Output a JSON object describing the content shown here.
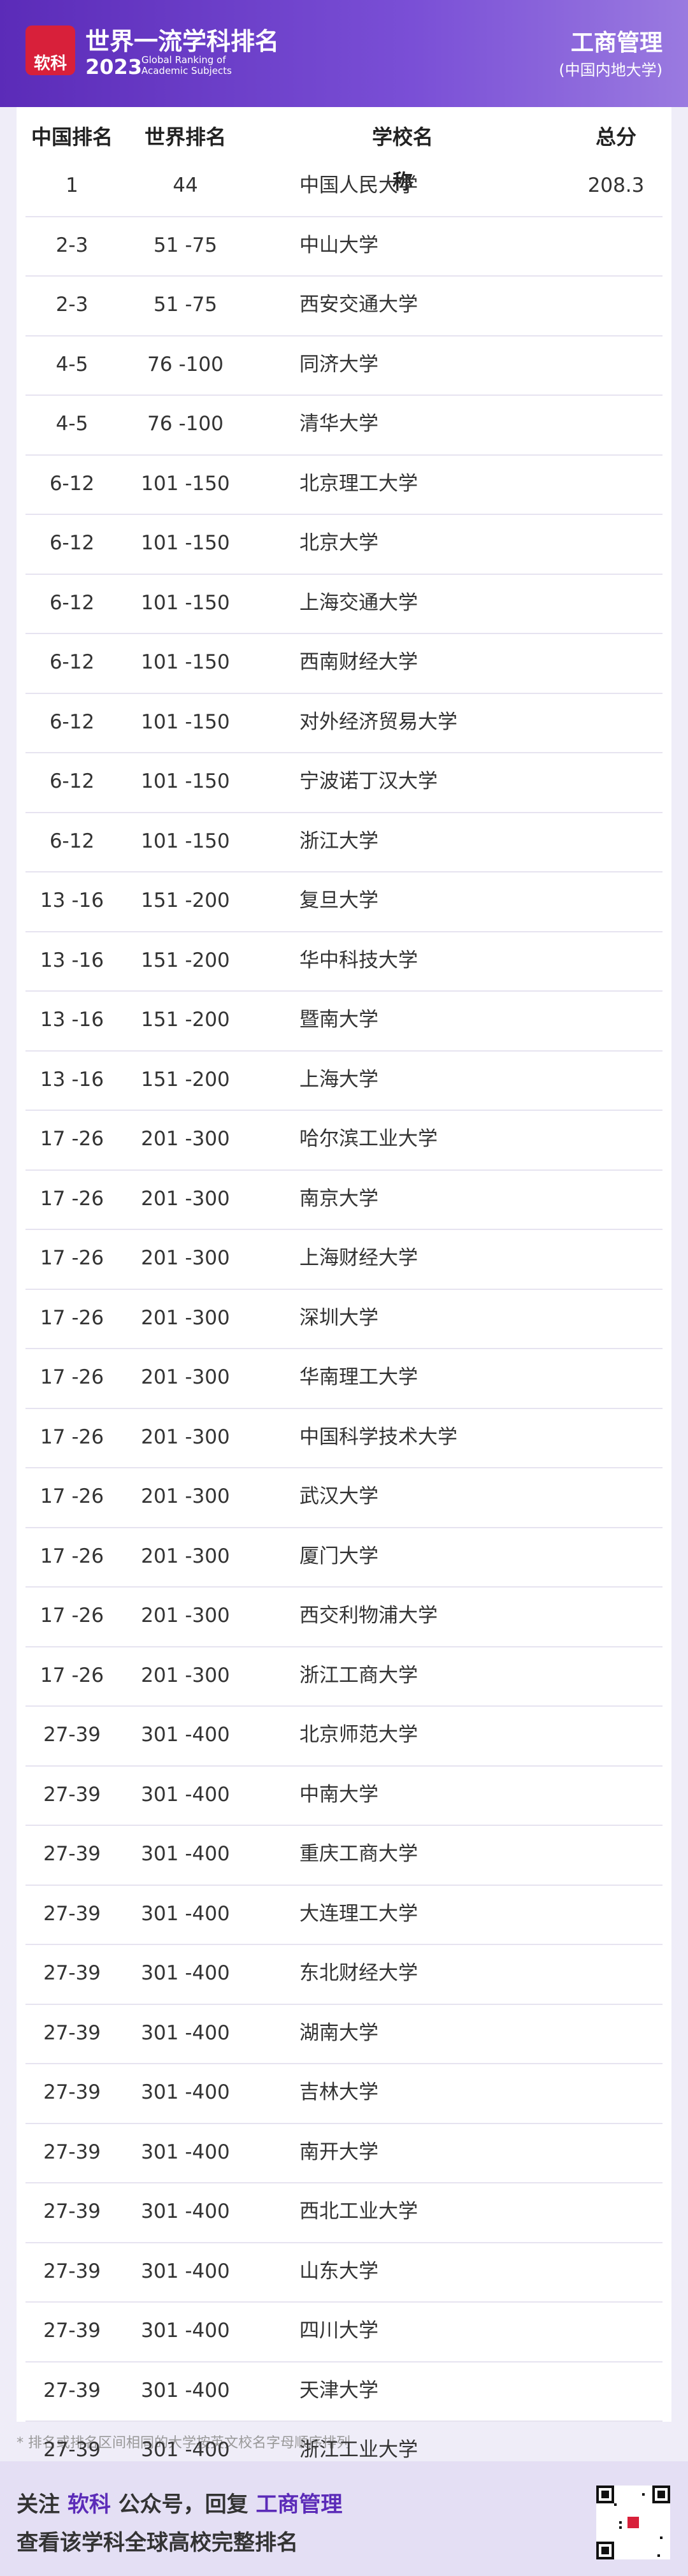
{
  "header": {
    "logo_text": "软科",
    "title": "世界一流学科排名",
    "year": "2023",
    "subtitle": "Global Ranking of Academic Subjects",
    "subject": "工商管理",
    "scope": "(中国内地大学)"
  },
  "table": {
    "columns": [
      "中国排名",
      "世界排名",
      "学校名称",
      "总分"
    ],
    "rows": [
      {
        "cn_rank": "1",
        "world_rank": "44",
        "name": "中国人民大学",
        "score": "208.3"
      },
      {
        "cn_rank": "2-3",
        "world_rank": "51 -75",
        "name": "中山大学"
      },
      {
        "cn_rank": "2-3",
        "world_rank": "51 -75",
        "name": "西安交通大学"
      },
      {
        "cn_rank": "4-5",
        "world_rank": "76 -100",
        "name": "同济大学"
      },
      {
        "cn_rank": "4-5",
        "world_rank": "76 -100",
        "name": "清华大学"
      },
      {
        "cn_rank": "6-12",
        "world_rank": "101 -150",
        "name": "北京理工大学"
      },
      {
        "cn_rank": "6-12",
        "world_rank": "101 -150",
        "name": "北京大学"
      },
      {
        "cn_rank": "6-12",
        "world_rank": "101 -150",
        "name": "上海交通大学"
      },
      {
        "cn_rank": "6-12",
        "world_rank": "101 -150",
        "name": "西南财经大学"
      },
      {
        "cn_rank": "6-12",
        "world_rank": "101 -150",
        "name": "对外经济贸易大学"
      },
      {
        "cn_rank": "6-12",
        "world_rank": "101 -150",
        "name": "宁波诺丁汉大学"
      },
      {
        "cn_rank": "6-12",
        "world_rank": "101 -150",
        "name": "浙江大学"
      },
      {
        "cn_rank": "13 -16",
        "world_rank": "151 -200",
        "name": "复旦大学"
      },
      {
        "cn_rank": "13 -16",
        "world_rank": "151 -200",
        "name": "华中科技大学"
      },
      {
        "cn_rank": "13 -16",
        "world_rank": "151 -200",
        "name": "暨南大学"
      },
      {
        "cn_rank": "13 -16",
        "world_rank": "151 -200",
        "name": "上海大学"
      },
      {
        "cn_rank": "17 -26",
        "world_rank": "201 -300",
        "name": "哈尔滨工业大学"
      },
      {
        "cn_rank": "17 -26",
        "world_rank": "201 -300",
        "name": "南京大学"
      },
      {
        "cn_rank": "17 -26",
        "world_rank": "201 -300",
        "name": "上海财经大学"
      },
      {
        "cn_rank": "17 -26",
        "world_rank": "201 -300",
        "name": "深圳大学"
      },
      {
        "cn_rank": "17 -26",
        "world_rank": "201 -300",
        "name": "华南理工大学"
      },
      {
        "cn_rank": "17 -26",
        "world_rank": "201 -300",
        "name": "中国科学技术大学"
      },
      {
        "cn_rank": "17 -26",
        "world_rank": "201 -300",
        "name": "武汉大学"
      },
      {
        "cn_rank": "17 -26",
        "world_rank": "201 -300",
        "name": "厦门大学"
      },
      {
        "cn_rank": "17 -26",
        "world_rank": "201 -300",
        "name": "西交利物浦大学"
      },
      {
        "cn_rank": "17 -26",
        "world_rank": "201 -300",
        "name": "浙江工商大学"
      },
      {
        "cn_rank": "27-39",
        "world_rank": "301 -400",
        "name": "北京师范大学"
      },
      {
        "cn_rank": "27-39",
        "world_rank": "301 -400",
        "name": "中南大学"
      },
      {
        "cn_rank": "27-39",
        "world_rank": "301 -400",
        "name": "重庆工商大学"
      },
      {
        "cn_rank": "27-39",
        "world_rank": "301 -400",
        "name": "大连理工大学"
      },
      {
        "cn_rank": "27-39",
        "world_rank": "301 -400",
        "name": "东北财经大学"
      },
      {
        "cn_rank": "27-39",
        "world_rank": "301 -400",
        "name": "湖南大学"
      },
      {
        "cn_rank": "27-39",
        "world_rank": "301 -400",
        "name": "吉林大学"
      },
      {
        "cn_rank": "27-39",
        "world_rank": "301 -400",
        "name": "南开大学"
      },
      {
        "cn_rank": "27-39",
        "world_rank": "301 -400",
        "name": "西北工业大学"
      },
      {
        "cn_rank": "27-39",
        "world_rank": "301 -400",
        "name": "山东大学"
      },
      {
        "cn_rank": "27-39",
        "world_rank": "301 -400",
        "name": "四川大学"
      },
      {
        "cn_rank": "27-39",
        "world_rank": "301 -400",
        "name": "天津大学"
      },
      {
        "cn_rank": "27-39",
        "world_rank": "301 -400",
        "name": "浙江工业大学"
      }
    ]
  },
  "footnote": "* 排名或排名区间相同的大学按英文校名字母顺序排列",
  "footer": {
    "line1": [
      "关注",
      "软科",
      "公众号，回复",
      "工商管理"
    ],
    "line2": "查看该学科全球高校完整排名"
  }
}
